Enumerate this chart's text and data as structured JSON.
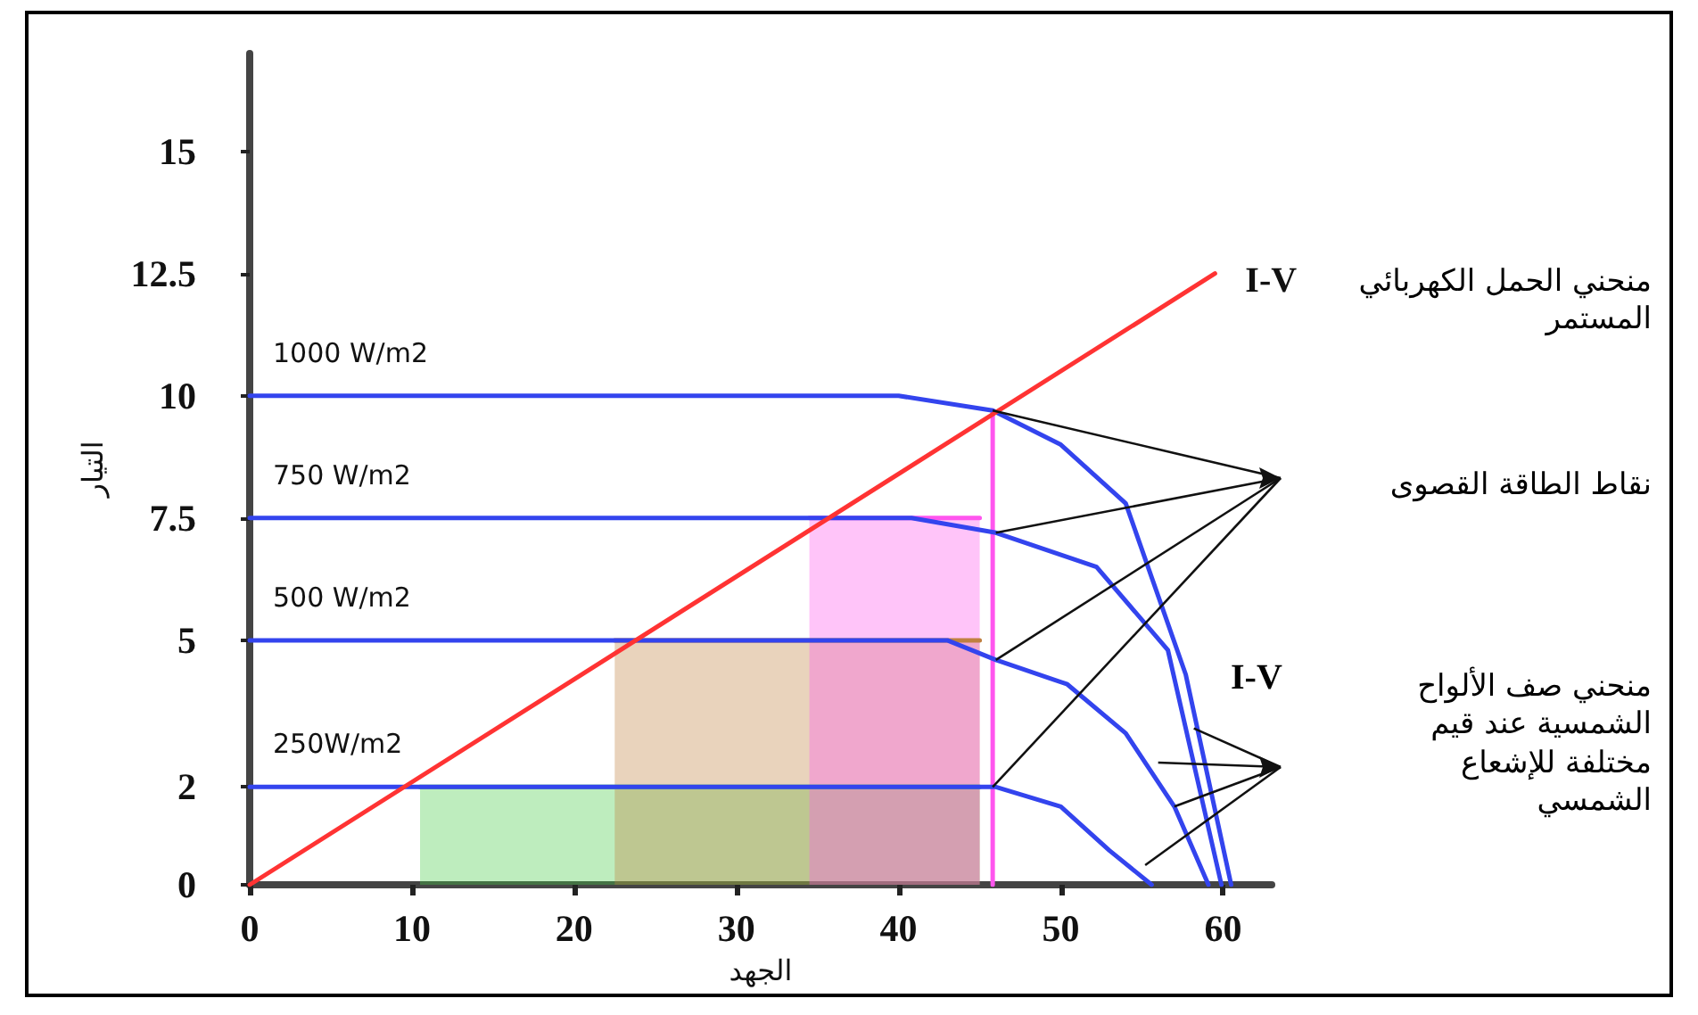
{
  "chart_data": {
    "type": "line",
    "xlabel": "الجهد",
    "ylabel": "التيار",
    "xlim": [
      0,
      63
    ],
    "xticks": [
      0,
      10,
      20,
      30,
      40,
      50,
      60
    ],
    "ylim": [
      0,
      17
    ],
    "yticks": [
      0,
      2,
      5,
      7.5,
      10,
      12.5,
      15
    ],
    "grid": false,
    "legend": false,
    "marker": "none",
    "line_style": "solid",
    "series": [
      {
        "type": "area",
        "color": "#44cc44",
        "x": [
          10.5,
          45
        ],
        "values": [
          2,
          2
        ]
      },
      {
        "type": "area",
        "color": "#c08040",
        "x": [
          22.5,
          45
        ],
        "values": [
          5,
          5
        ]
      },
      {
        "type": "area",
        "color": "#ff55ee",
        "x": [
          34.5,
          45
        ],
        "values": [
          7.5,
          7.5
        ]
      },
      {
        "type": "line",
        "color": "#ff55ee",
        "x": [
          45.8,
          45.8
        ],
        "values": [
          0,
          9.7
        ]
      },
      {
        "name": "1000 W/m2",
        "color": "#3344ee",
        "x": [
          0,
          40,
          45.8,
          50,
          54,
          57.7,
          60.5
        ],
        "values": [
          10,
          10,
          9.7,
          9,
          7.8,
          4.3,
          0
        ]
      },
      {
        "name": "750 W/m2",
        "color": "#3344ee",
        "x": [
          0,
          40.8,
          46,
          52.2,
          56.6,
          59.9
        ],
        "values": [
          7.5,
          7.5,
          7.2,
          6.5,
          4.8,
          0
        ]
      },
      {
        "name": "500 W/m2",
        "color": "#3344ee",
        "x": [
          0,
          43,
          46,
          50.4,
          54,
          57,
          59.1
        ],
        "values": [
          5,
          5,
          4.6,
          4.1,
          3.1,
          1.6,
          0
        ]
      },
      {
        "name": "250W/m2",
        "color": "#3344ee",
        "x": [
          0,
          43,
          46,
          50,
          53,
          55.6
        ],
        "values": [
          2,
          2,
          2,
          1.6,
          0.7,
          0
        ]
      },
      {
        "name": "I-V",
        "color": "#ff3333",
        "x": [
          0,
          59.5
        ],
        "values": [
          0,
          12.5
        ]
      }
    ],
    "annotations": [
      "منحني الحمل الكهربائي المستمر",
      "نقاط الطاقة القصوى",
      "I-V",
      "منحني صف الألواح الشمسية عند قيم مختلفة للإشعاع الشمسي"
    ]
  }
}
